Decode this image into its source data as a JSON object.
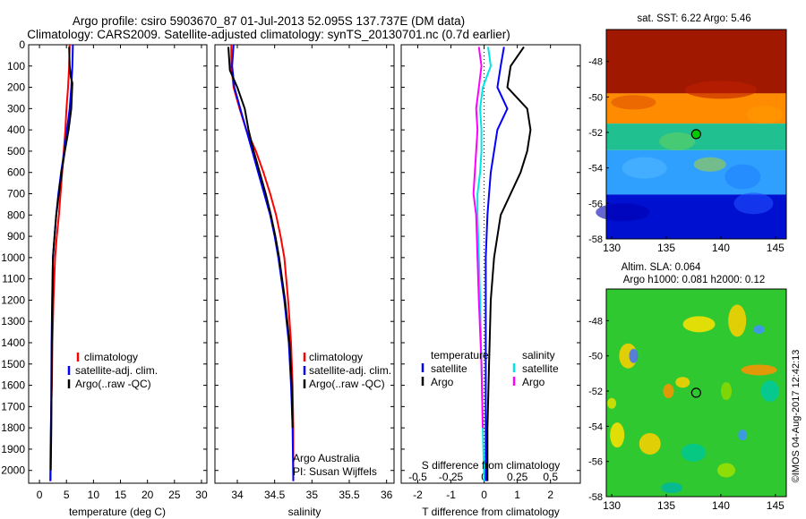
{
  "header": {
    "line1": "Argo profile: csiro 5903670_87 01-Jul-2013 52.095S 137.737E (DM data)",
    "line2": "Climatology: CARS2009. Satellite-adjusted climatology: synTS_20130701.nc (0.7d earlier)"
  },
  "colors": {
    "climatology": "#ff0000",
    "satellite": "#0000ff",
    "argo": "#000000",
    "salinity_satellite": "#00e5e5",
    "salinity_argo": "#ff00ff"
  },
  "legend": {
    "climatology": "climatology",
    "satellite": "satellite-adj. clim.",
    "argo": "Argo(..raw -QC)",
    "diff_temperature": "temperature",
    "diff_salinity": "salinity",
    "diff_satellite": "satellite",
    "diff_argo": "Argo"
  },
  "annotations": {
    "argo_australia": "Argo Australia",
    "pi": "PI: Susan Wijffels",
    "s_diff_label": "S difference from climatology",
    "sst_title": "sat. SST: 6.22  Argo: 5.46",
    "sla_title1": "Altim. SLA: 0.064",
    "sla_title2": "Argo h1000: 0.081  h2000: 0.12",
    "imos_stamp": "©IMOS 04-Aug-2017 12:42:13"
  },
  "chart_data": [
    {
      "type": "line",
      "id": "temperature",
      "xlabel": "temperature (deg C)",
      "ylabel": "",
      "xlim": [
        -2,
        31
      ],
      "ylim": [
        2060,
        0
      ],
      "xticks": [
        0,
        5,
        10,
        15,
        20,
        25,
        30
      ],
      "yticks": [
        0,
        100,
        200,
        300,
        400,
        500,
        600,
        700,
        800,
        900,
        1000,
        1100,
        1200,
        1300,
        1400,
        1500,
        1600,
        1700,
        1800,
        1900,
        2000
      ],
      "grid": false,
      "legend_position": "lower-middle",
      "series": [
        {
          "name": "climatology",
          "color": "#ff0000",
          "x": [
            5.6,
            5.5,
            5.3,
            5.0,
            4.8,
            4.5,
            4.2,
            3.9,
            3.6,
            3.2,
            2.9,
            2.6,
            2.4,
            2.3,
            2.2,
            2.1,
            2.05,
            2.0
          ],
          "y": [
            0,
            100,
            200,
            300,
            400,
            500,
            600,
            700,
            800,
            900,
            1000,
            1200,
            1400,
            1600,
            1700,
            1800,
            1900,
            2050
          ]
        },
        {
          "name": "satellite-adj. clim.",
          "color": "#0000ff",
          "x": [
            6.2,
            6.1,
            6.0,
            5.9,
            5.6,
            5.1,
            4.6,
            4.0,
            3.5,
            3.1,
            2.8,
            2.5,
            2.35,
            2.25,
            2.2,
            2.15,
            2.1,
            2.05
          ],
          "y": [
            0,
            100,
            150,
            200,
            300,
            400,
            500,
            600,
            700,
            800,
            900,
            1000,
            1200,
            1400,
            1600,
            1800,
            1900,
            2050
          ]
        },
        {
          "name": "Argo(..raw -QC)",
          "color": "#000000",
          "x": [
            5.5,
            5.6,
            5.8,
            6.1,
            5.9,
            5.4,
            4.7,
            4.1,
            3.6,
            3.1,
            2.8,
            2.5,
            2.4,
            2.3,
            2.25,
            2.2,
            2.15,
            2.1
          ],
          "y": [
            10,
            100,
            150,
            180,
            300,
            400,
            500,
            600,
            700,
            800,
            900,
            1000,
            1200,
            1400,
            1600,
            1800,
            1900,
            2000
          ]
        }
      ]
    },
    {
      "type": "line",
      "id": "salinity",
      "xlabel": "salinity",
      "ylabel": "",
      "xlim": [
        33.7,
        36.1
      ],
      "ylim": [
        2060,
        0
      ],
      "xticks": [
        34,
        34.5,
        35,
        35.5,
        36
      ],
      "xticklabels": [
        "34",
        "34.5",
        "35",
        "35.5",
        "36"
      ],
      "grid": false,
      "legend_position": "lower-right",
      "series": [
        {
          "name": "climatology",
          "color": "#ff0000",
          "x": [
            33.92,
            33.92,
            33.95,
            34.03,
            34.12,
            34.25,
            34.35,
            34.44,
            34.52,
            34.58,
            34.63,
            34.68,
            34.72,
            34.74,
            34.75,
            34.75
          ],
          "y": [
            0,
            100,
            200,
            300,
            400,
            500,
            600,
            700,
            800,
            900,
            1000,
            1200,
            1400,
            1600,
            1800,
            2050
          ]
        },
        {
          "name": "satellite-adj. clim.",
          "color": "#0000ff",
          "x": [
            33.95,
            33.93,
            33.96,
            34.04,
            34.12,
            34.2,
            34.28,
            34.36,
            34.44,
            34.5,
            34.55,
            34.63,
            34.69,
            34.72,
            34.74,
            34.75
          ],
          "y": [
            0,
            100,
            200,
            300,
            400,
            500,
            600,
            700,
            800,
            900,
            1000,
            1200,
            1400,
            1600,
            1800,
            2050
          ]
        },
        {
          "name": "Argo(..raw -QC)",
          "color": "#000000",
          "x": [
            33.88,
            33.9,
            34.0,
            34.1,
            34.15,
            34.22,
            34.3,
            34.38,
            34.45,
            34.51,
            34.56,
            34.64,
            34.7,
            34.73,
            34.74
          ],
          "y": [
            10,
            120,
            200,
            300,
            400,
            500,
            600,
            700,
            800,
            900,
            1000,
            1200,
            1400,
            1600,
            1800
          ]
        }
      ]
    },
    {
      "type": "line",
      "id": "differences",
      "xlabel": "T difference from climatology",
      "x2label": "S difference from climatology",
      "ylabel": "",
      "xlim": [
        -2.5,
        2.9
      ],
      "x2lim": [
        -0.625,
        0.725
      ],
      "ylim": [
        2060,
        0
      ],
      "xticks": [
        -2,
        -1,
        0,
        1,
        2
      ],
      "x2ticks": [
        -0.5,
        -0.25,
        0,
        0.25,
        0.5
      ],
      "x2ticklabels": [
        "-0.5",
        "-0.25",
        "0",
        "0.25",
        "0.5"
      ],
      "grid": false,
      "legend_position": "lower-middle",
      "series": [
        {
          "name": "temperature satellite",
          "color": "#0000ff",
          "axis": "T",
          "x": [
            0.6,
            0.5,
            0.4,
            0.7,
            0.4,
            0.3,
            0.2,
            0.15,
            0.1,
            0.05,
            0.05,
            0.05,
            0.05,
            0.05
          ],
          "y": [
            10,
            100,
            200,
            300,
            400,
            500,
            600,
            700,
            800,
            1000,
            1200,
            1500,
            1800,
            2050
          ]
        },
        {
          "name": "temperature Argo",
          "color": "#000000",
          "axis": "T",
          "x": [
            1.2,
            0.8,
            0.7,
            1.3,
            1.4,
            1.3,
            1.1,
            0.8,
            0.5,
            0.3,
            0.2,
            0.15,
            0.1,
            0.1
          ],
          "y": [
            10,
            100,
            200,
            300,
            400,
            500,
            600,
            700,
            800,
            1000,
            1200,
            1500,
            1800,
            2050
          ]
        },
        {
          "name": "salinity satellite",
          "color": "#00e5e5",
          "axis": "S",
          "x": [
            0.03,
            0.05,
            -0.01,
            -0.03,
            -0.02,
            -0.02,
            -0.03,
            -0.05,
            -0.05,
            -0.04,
            -0.03,
            -0.02,
            -0.01,
            0.0
          ],
          "y": [
            10,
            100,
            200,
            300,
            400,
            500,
            600,
            700,
            800,
            1000,
            1200,
            1500,
            1800,
            2050
          ]
        },
        {
          "name": "salinity Argo",
          "color": "#ff00ff",
          "axis": "S",
          "x": [
            -0.04,
            -0.02,
            -0.04,
            -0.06,
            -0.05,
            -0.06,
            -0.07,
            -0.08,
            -0.06,
            -0.05,
            -0.04,
            -0.02,
            -0.01
          ],
          "y": [
            10,
            100,
            200,
            300,
            400,
            500,
            600,
            700,
            800,
            1000,
            1200,
            1500,
            1800
          ]
        }
      ]
    },
    {
      "type": "heatmap",
      "id": "sst_map",
      "title": "sat. SST: 6.22  Argo: 5.46",
      "xlim": [
        129.5,
        146
      ],
      "ylim": [
        -58,
        -46.2
      ],
      "xticks": [
        130,
        135,
        140,
        145
      ],
      "yticks": [
        -48,
        -50,
        -52,
        -54,
        -56,
        -58
      ],
      "marker": {
        "lon": 137.737,
        "lat": -52.095,
        "color": "#00cc00"
      },
      "color_zones_by_lat": [
        {
          "from_lat": -46.2,
          "to_lat": -49.8,
          "color": "#a01800"
        },
        {
          "from_lat": -49.8,
          "to_lat": -51.5,
          "color": "#ff8c00"
        },
        {
          "from_lat": -51.5,
          "to_lat": -53.0,
          "color": "#20c090"
        },
        {
          "from_lat": -53.0,
          "to_lat": -55.5,
          "color": "#30a0ff"
        },
        {
          "from_lat": -55.5,
          "to_lat": -58.0,
          "color": "#0010d0"
        }
      ]
    },
    {
      "type": "heatmap",
      "id": "sla_map",
      "title": "Altim. SLA: 0.064",
      "xlim": [
        129.5,
        146
      ],
      "ylim": [
        -58,
        -46.2
      ],
      "xticks": [
        130,
        135,
        140,
        145
      ],
      "yticks": [
        -48,
        -50,
        -52,
        -54,
        -56,
        -58
      ],
      "marker": {
        "lon": 137.737,
        "lat": -52.095,
        "color": "#00cc00"
      },
      "base_color": "#30c830"
    }
  ]
}
